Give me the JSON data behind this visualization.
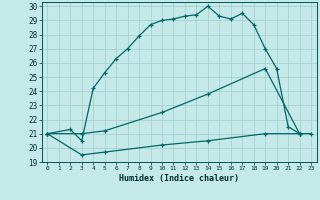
{
  "xlabel": "Humidex (Indice chaleur)",
  "background_color": "#c5e8e8",
  "grid_color": "#a0cccc",
  "line_color": "#006868",
  "xlim": [
    -0.5,
    23.5
  ],
  "ylim": [
    19,
    30.3
  ],
  "xticks": [
    0,
    1,
    2,
    3,
    4,
    5,
    6,
    7,
    8,
    9,
    10,
    11,
    12,
    13,
    14,
    15,
    16,
    17,
    18,
    19,
    20,
    21,
    22,
    23
  ],
  "yticks": [
    19,
    20,
    21,
    22,
    23,
    24,
    25,
    26,
    27,
    28,
    29,
    30
  ],
  "curve1_x": [
    0,
    2,
    3,
    4,
    5,
    6,
    7,
    8,
    9,
    10,
    11,
    12,
    13,
    14,
    15,
    16,
    17,
    18,
    19,
    20,
    21,
    22
  ],
  "curve1_y": [
    21,
    21.3,
    20.5,
    24.2,
    25.3,
    26.3,
    27.0,
    27.9,
    28.7,
    29.0,
    29.1,
    29.3,
    29.4,
    30.0,
    29.3,
    29.1,
    29.5,
    28.7,
    27.0,
    25.6,
    21.5,
    21.0
  ],
  "curve2_x": [
    0,
    3,
    5,
    10,
    14,
    19,
    22
  ],
  "curve2_y": [
    21,
    21,
    21.2,
    22.5,
    23.8,
    25.6,
    21.0
  ],
  "curve3_x": [
    0,
    3,
    5,
    10,
    14,
    19,
    22,
    23
  ],
  "curve3_y": [
    21,
    19.5,
    19.7,
    20.2,
    20.5,
    21.0,
    21.0,
    21.0
  ]
}
